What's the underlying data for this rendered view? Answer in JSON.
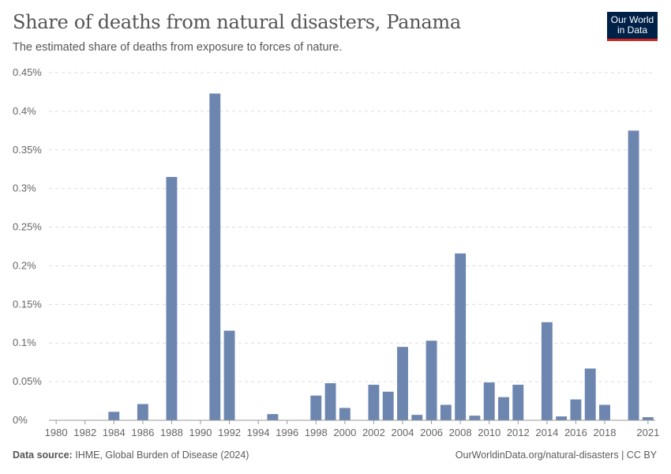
{
  "header": {
    "title": "Share of deaths from natural disasters, Panama",
    "subtitle": "The estimated share of deaths from exposure to forces of nature."
  },
  "logo": {
    "line1": "Our World",
    "line2": "in Data",
    "bg_color": "#002147",
    "accent_color": "#ce261e"
  },
  "footer": {
    "source_label": "Data source:",
    "source_text": "IHME, Global Burden of Disease (2024)",
    "url_text": "OurWorldinData.org/natural-disasters | CC BY"
  },
  "chart_data": {
    "type": "bar",
    "title": "Share of deaths from natural disasters, Panama",
    "xlabel": "",
    "ylabel": "",
    "ylim": [
      0,
      0.45
    ],
    "y_ticks": [
      0,
      0.05,
      0.1,
      0.15,
      0.2,
      0.25,
      0.3,
      0.35,
      0.4,
      0.45
    ],
    "y_tick_labels": [
      "0%",
      "0.05%",
      "0.1%",
      "0.15%",
      "0.2%",
      "0.25%",
      "0.3%",
      "0.35%",
      "0.4%",
      "0.45%"
    ],
    "x_range": [
      1980,
      2021
    ],
    "x_tick_labels": [
      "1980",
      "1982",
      "1984",
      "1986",
      "1988",
      "1990",
      "1992",
      "1994",
      "1996",
      "1998",
      "2000",
      "2002",
      "2004",
      "2006",
      "2008",
      "2010",
      "2012",
      "2014",
      "2016",
      "2018",
      "2021"
    ],
    "bar_color": "#6d86b0",
    "grid": true,
    "units": "%",
    "categories": [
      1984,
      1986,
      1988,
      1991,
      1992,
      1995,
      1998,
      1999,
      2000,
      2002,
      2003,
      2004,
      2005,
      2006,
      2007,
      2008,
      2009,
      2010,
      2011,
      2012,
      2014,
      2015,
      2016,
      2017,
      2018,
      2020,
      2021
    ],
    "values": [
      0.011,
      0.021,
      0.315,
      0.423,
      0.116,
      0.008,
      0.032,
      0.048,
      0.016,
      0.046,
      0.037,
      0.095,
      0.007,
      0.103,
      0.02,
      0.216,
      0.006,
      0.049,
      0.03,
      0.046,
      0.127,
      0.005,
      0.027,
      0.067,
      0.02,
      0.375,
      0.004
    ]
  }
}
